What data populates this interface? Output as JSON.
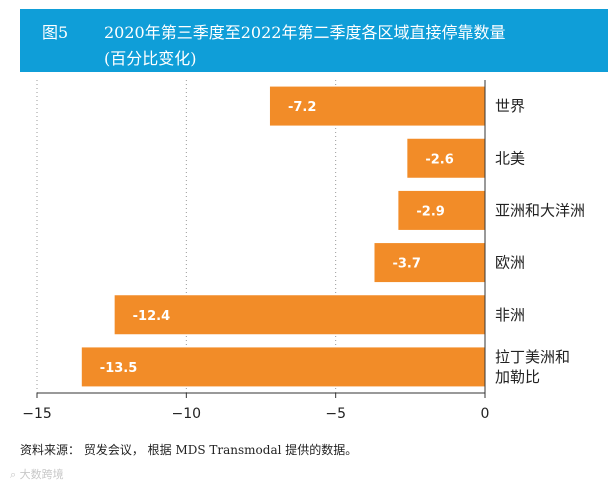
{
  "header": {
    "fig_label": "图5",
    "title_line1": "2020年第三季度至2022年第二季度各区域直接停靠数量",
    "title_line2": "(百分比变化)"
  },
  "chart_data": {
    "type": "bar",
    "orientation": "horizontal",
    "categories": [
      "世界",
      "北美",
      "亚洲和大洋洲",
      "欧洲",
      "非洲",
      "拉丁美洲和加勒比"
    ],
    "category_lines": [
      [
        "世界"
      ],
      [
        "北美"
      ],
      [
        "亚洲和大洋洲"
      ],
      [
        "欧洲"
      ],
      [
        "非洲"
      ],
      [
        "拉丁美洲和",
        "加勒比"
      ]
    ],
    "values": [
      -7.2,
      -2.6,
      -2.9,
      -3.7,
      -12.4,
      -13.5
    ],
    "value_labels": [
      "-7.2",
      "-2.6",
      "-2.9",
      "-3.7",
      "-12.4",
      "-13.5"
    ],
    "xlim": [
      -15,
      0
    ],
    "xticks": [
      -15,
      -10,
      -5,
      0
    ],
    "xtick_labels": [
      "−15",
      "−10",
      "−5",
      "0"
    ],
    "bar_color": "#f28c28",
    "grid": "vertical dotted"
  },
  "footer": {
    "source": "资料来源： 贸发会议， 根据 MDS Transmodal 提供的数据。",
    "watermark": "⌕ 大数跨境"
  }
}
